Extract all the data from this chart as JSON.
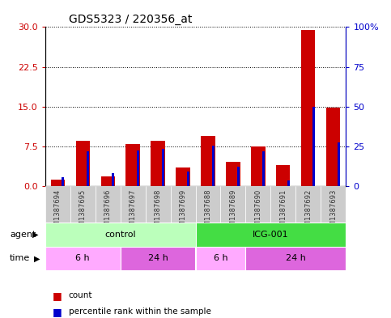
{
  "title": "GDS5323 / 220356_at",
  "samples": [
    "GSM1387694",
    "GSM1387695",
    "GSM1387696",
    "GSM1387697",
    "GSM1387698",
    "GSM1387699",
    "GSM1387688",
    "GSM1387689",
    "GSM1387690",
    "GSM1387691",
    "GSM1387692",
    "GSM1387693"
  ],
  "count_values": [
    1.2,
    8.5,
    1.8,
    8.0,
    8.5,
    3.5,
    9.5,
    4.5,
    7.5,
    4.0,
    29.5,
    14.8
  ],
  "percentile_values": [
    5.5,
    22.0,
    8.0,
    22.5,
    23.5,
    9.0,
    25.5,
    12.0,
    22.0,
    3.5,
    50.0,
    27.5
  ],
  "left_ylim": [
    0,
    30
  ],
  "right_ylim": [
    0,
    100
  ],
  "left_yticks": [
    0,
    7.5,
    15,
    22.5,
    30
  ],
  "right_yticks": [
    0,
    25,
    50,
    75,
    100
  ],
  "right_yticklabels": [
    "0",
    "25",
    "50",
    "75",
    "100%"
  ],
  "left_color": "#cc0000",
  "right_color": "#0000cc",
  "bg_color": "#ffffff",
  "agent_row": [
    {
      "label": "control",
      "start": 0,
      "end": 6,
      "color": "#bbffbb"
    },
    {
      "label": "ICG-001",
      "start": 6,
      "end": 12,
      "color": "#44dd44"
    }
  ],
  "time_row": [
    {
      "label": "6 h",
      "start": 0,
      "end": 3,
      "color": "#ffaaff"
    },
    {
      "label": "24 h",
      "start": 3,
      "end": 6,
      "color": "#dd66dd"
    },
    {
      "label": "6 h",
      "start": 6,
      "end": 8,
      "color": "#ffaaff"
    },
    {
      "label": "24 h",
      "start": 8,
      "end": 12,
      "color": "#dd66dd"
    }
  ],
  "xlabel_agent": "agent",
  "xlabel_time": "time",
  "legend_count": "count",
  "legend_percentile": "percentile rank within the sample",
  "header_bg": "#cccccc",
  "red_bar_width": 0.55,
  "blue_bar_width": 0.12
}
